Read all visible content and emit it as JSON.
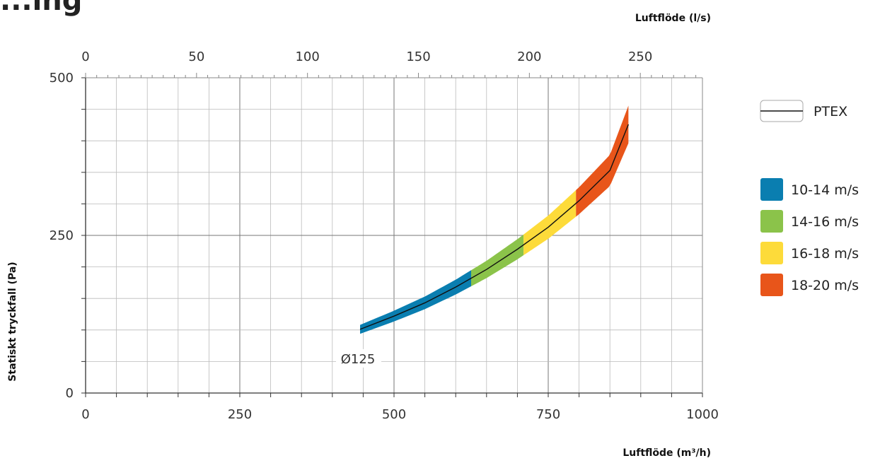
{
  "chart_data": {
    "type": "line",
    "title_fragment": "...ing",
    "xlabel_bottom": "Luftflöde (m³/h)",
    "xlabel_top": "Luftflöde (l/s)",
    "ylabel": "Statiskt tryckfall (Pa)",
    "xlim_bottom": [
      0,
      1000
    ],
    "xlim_top": [
      0,
      278
    ],
    "ylim": [
      0,
      500
    ],
    "x_ticks_bottom": [
      0,
      250,
      500,
      750,
      1000
    ],
    "x_ticks_top": [
      0,
      50,
      100,
      150,
      200,
      250
    ],
    "y_ticks": [
      0,
      250,
      500
    ],
    "grid": true,
    "legend_position": "right",
    "series": [
      {
        "name": "PTEX",
        "label": "Ø125",
        "x": [
          445,
          500,
          550,
          600,
          650,
          700,
          750,
          800,
          850,
          880
        ],
        "y": [
          101,
          122,
          143,
          168,
          196,
          228,
          263,
          305,
          353,
          426
        ]
      }
    ],
    "velocity_bands": [
      {
        "label": "10-14 m/s",
        "color": "#0a7eb0",
        "x_range": [
          445,
          625
        ]
      },
      {
        "label": "14-16 m/s",
        "color": "#8bc34a",
        "x_range": [
          625,
          710
        ]
      },
      {
        "label": "16-18 m/s",
        "color": "#fddb3a",
        "x_range": [
          710,
          795
        ]
      },
      {
        "label": "18-20 m/s",
        "color": "#e8551a",
        "x_range": [
          795,
          880
        ]
      }
    ]
  }
}
